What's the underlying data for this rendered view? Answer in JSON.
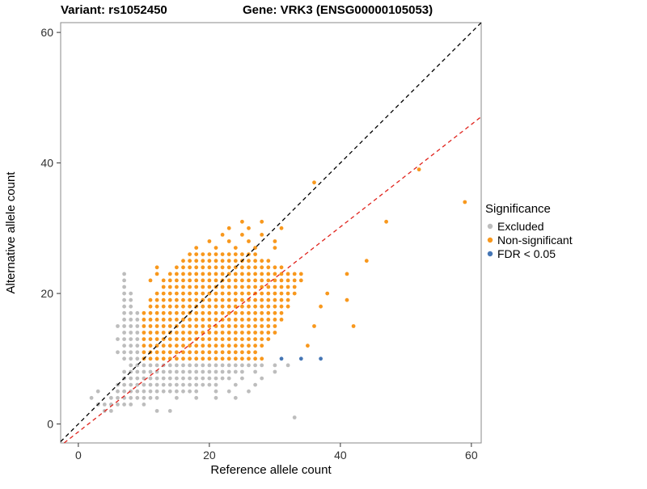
{
  "chart_data": {
    "type": "scatter",
    "title_left": "Variant: rs1052450",
    "title_right": "Gene: VRK3 (ENSG00000105053)",
    "xlabel": "Reference allele count",
    "ylabel": "Alternative allele count",
    "xlim": [
      -2.7,
      61.5
    ],
    "ylim": [
      -2.9,
      61.5
    ],
    "xticks": [
      0,
      20,
      40,
      60
    ],
    "yticks": [
      0,
      20,
      40,
      60
    ],
    "grid": false,
    "legend": {
      "title": "Significance",
      "position": "right",
      "items": [
        {
          "label": "Excluded",
          "color": "#bdbdbd"
        },
        {
          "label": "Non-significant",
          "color": "#f8981d"
        },
        {
          "label": "FDR < 0.05",
          "color": "#4576b5"
        }
      ]
    },
    "lines": [
      {
        "name": "identity",
        "slope": 1,
        "intercept": 0,
        "color": "#000000",
        "dash": "5,4"
      },
      {
        "name": "fit",
        "slope": 0.785,
        "intercept": -1.2,
        "color": "#e0231c",
        "dash": "5,4"
      }
    ],
    "series": [
      {
        "name": "Excluded",
        "color": "#bdbdbd",
        "runs_h": [
          [
            3,
            4,
            8
          ],
          [
            4,
            5,
            12
          ],
          [
            5,
            6,
            18
          ],
          [
            6,
            6,
            21
          ],
          [
            7,
            7,
            23
          ],
          [
            8,
            7,
            25
          ],
          [
            9,
            8,
            28
          ]
        ],
        "runs_v": [
          [
            7,
            10,
            23
          ],
          [
            8,
            10,
            20
          ],
          [
            9,
            10,
            17
          ]
        ],
        "points": [
          [
            4,
            2
          ],
          [
            5,
            2
          ],
          [
            12,
            2
          ],
          [
            14,
            2
          ],
          [
            33,
            1
          ],
          [
            10,
            3
          ],
          [
            15,
            4
          ],
          [
            18,
            4
          ],
          [
            21,
            4
          ],
          [
            24,
            4
          ],
          [
            21,
            5
          ],
          [
            23,
            5
          ],
          [
            26,
            5
          ],
          [
            24,
            6
          ],
          [
            27,
            6
          ],
          [
            25,
            7
          ],
          [
            28,
            7
          ],
          [
            27,
            8
          ],
          [
            30,
            8
          ],
          [
            30,
            9
          ],
          [
            32,
            9
          ],
          [
            2,
            4
          ],
          [
            3,
            3
          ],
          [
            3,
            5
          ],
          [
            6,
            11
          ],
          [
            6,
            13
          ],
          [
            6,
            15
          ]
        ]
      },
      {
        "name": "Non-significant",
        "color": "#f8981d",
        "runs_h": [
          [
            10,
            10,
            28
          ],
          [
            11,
            10,
            27
          ],
          [
            12,
            10,
            28
          ],
          [
            13,
            10,
            29
          ],
          [
            14,
            10,
            30
          ],
          [
            15,
            10,
            30
          ],
          [
            16,
            10,
            31
          ],
          [
            17,
            10,
            31
          ],
          [
            18,
            11,
            32
          ],
          [
            19,
            11,
            32
          ],
          [
            20,
            12,
            33
          ],
          [
            21,
            13,
            33
          ],
          [
            22,
            13,
            34
          ],
          [
            23,
            14,
            34
          ],
          [
            24,
            15,
            31
          ],
          [
            25,
            16,
            29
          ],
          [
            26,
            17,
            27
          ]
        ],
        "runs_v": [],
        "points": [
          [
            11,
            22
          ],
          [
            12,
            23
          ],
          [
            12,
            24
          ],
          [
            18,
            27
          ],
          [
            21,
            27
          ],
          [
            24,
            27
          ],
          [
            27,
            27
          ],
          [
            30,
            27
          ],
          [
            20,
            28
          ],
          [
            23,
            28
          ],
          [
            26,
            28
          ],
          [
            30,
            28
          ],
          [
            22,
            29
          ],
          [
            25,
            29
          ],
          [
            28,
            29
          ],
          [
            23,
            30
          ],
          [
            26,
            30
          ],
          [
            31,
            30
          ],
          [
            25,
            31
          ],
          [
            28,
            31
          ],
          [
            47,
            31
          ],
          [
            35,
            12
          ],
          [
            36,
            15
          ],
          [
            42,
            15
          ],
          [
            37,
            18
          ],
          [
            38,
            20
          ],
          [
            41,
            19
          ],
          [
            41,
            23
          ],
          [
            44,
            25
          ],
          [
            36,
            37
          ],
          [
            52,
            39
          ],
          [
            59,
            34
          ]
        ]
      },
      {
        "name": "FDR < 0.05",
        "color": "#4576b5",
        "runs_h": [],
        "runs_v": [],
        "points": [
          [
            31,
            10
          ],
          [
            34,
            10
          ],
          [
            37,
            10
          ]
        ]
      }
    ]
  }
}
